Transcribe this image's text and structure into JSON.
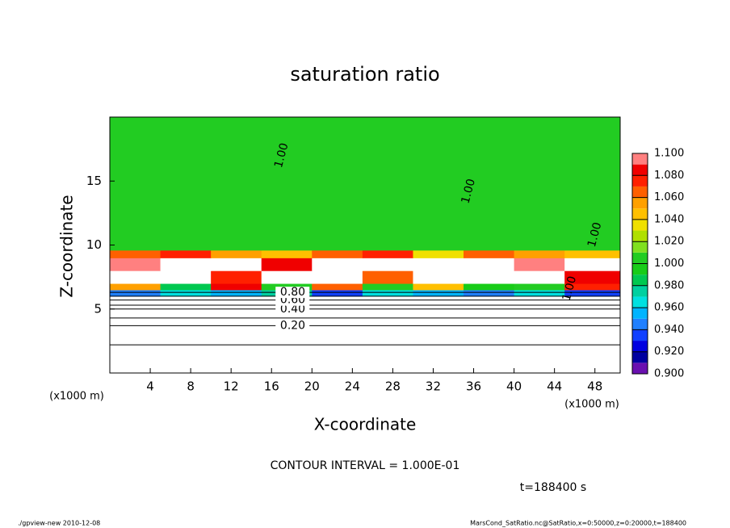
{
  "chart_data": {
    "type": "contour",
    "title": "saturation ratio",
    "x_label": "X-coordinate",
    "y_label": "Z-coordinate",
    "x_unit": "(x1000 m)",
    "y_unit": "(x1000 m)",
    "xlim": [
      0,
      50.5
    ],
    "ylim": [
      0,
      20
    ],
    "xticks": [
      4,
      8,
      12,
      16,
      20,
      24,
      28,
      32,
      36,
      40,
      44,
      48
    ],
    "yticks": [
      5,
      10,
      15
    ],
    "field": {
      "x_edges": [
        0,
        5,
        10,
        15,
        20,
        25,
        30,
        35,
        40,
        45,
        50.5
      ],
      "z_edges": [
        0,
        6,
        6.5,
        7,
        8,
        9,
        9.6,
        20
      ],
      "values": [
        [
          0.5,
          0.5,
          0.5,
          0.5,
          0.5,
          0.5,
          0.5,
          0.5,
          0.5,
          0.5
        ],
        [
          0.94,
          0.96,
          0.95,
          0.97,
          0.93,
          0.96,
          0.95,
          0.94,
          0.96,
          0.93
        ],
        [
          1.05,
          0.98,
          1.08,
          1.0,
          1.06,
          1.0,
          1.04,
          0.99,
          1.0,
          1.07
        ],
        [
          1.12,
          1.15,
          1.07,
          1.2,
          1.13,
          1.06,
          1.11,
          1.2,
          1.15,
          1.08
        ],
        [
          1.09,
          1.14,
          1.12,
          1.08,
          1.17,
          1.1,
          1.13,
          1.16,
          1.09,
          1.12
        ],
        [
          1.06,
          1.07,
          1.05,
          1.04,
          1.06,
          1.07,
          1.03,
          1.06,
          1.05,
          1.04
        ],
        [
          1.0,
          1.0,
          1.0,
          1.0,
          1.0,
          1.0,
          1.0,
          1.0,
          1.0,
          1.0
        ]
      ]
    },
    "colorbar": {
      "levels": [
        0.9,
        0.91,
        0.92,
        0.93,
        0.94,
        0.95,
        0.96,
        0.97,
        0.98,
        0.99,
        1.0,
        1.01,
        1.02,
        1.03,
        1.04,
        1.05,
        1.06,
        1.07,
        1.08,
        1.09,
        1.1
      ],
      "colors": [
        "#6a10b0",
        "#0000a0",
        "#0000e0",
        "#1040ff",
        "#2080ff",
        "#00b4ff",
        "#00e0e0",
        "#00d0a0",
        "#00c850",
        "#18cc18",
        "#22cc22",
        "#80e020",
        "#b0e000",
        "#f0e000",
        "#ffc000",
        "#ffa000",
        "#ff6000",
        "#ff2000",
        "#f00000",
        "#ff8080"
      ],
      "ticks": [
        {
          "value": 0.9,
          "label": "0.900"
        },
        {
          "value": 0.92,
          "label": "0.920"
        },
        {
          "value": 0.94,
          "label": "0.940"
        },
        {
          "value": 0.96,
          "label": "0.960"
        },
        {
          "value": 0.98,
          "label": "0.980"
        },
        {
          "value": 1.0,
          "label": "1.000"
        },
        {
          "value": 1.02,
          "label": "1.020"
        },
        {
          "value": 1.04,
          "label": "1.040"
        },
        {
          "value": 1.06,
          "label": "1.060"
        },
        {
          "value": 1.08,
          "label": "1.080"
        },
        {
          "value": 1.1,
          "label": "1.100"
        }
      ]
    },
    "contours": {
      "levels": [
        0.1,
        0.2,
        0.3,
        0.4,
        0.5,
        0.6,
        0.7,
        0.8
      ],
      "z": [
        2.2,
        3.7,
        4.3,
        5.0,
        5.3,
        5.7,
        6.0,
        6.3
      ],
      "labels": [
        null,
        "0.20",
        null,
        "0.40",
        null,
        "0.60",
        null,
        "0.80"
      ]
    },
    "level_labels": [
      {
        "label": "1.00",
        "x": 17,
        "z": 17
      },
      {
        "label": "1.00",
        "x": 35.5,
        "z": 14.2
      },
      {
        "label": "1.00",
        "x": 48,
        "z": 10.8
      },
      {
        "label": "1.00",
        "x": 45.5,
        "z": 6.6
      }
    ],
    "contour_interval": "CONTOUR INTERVAL = 1.000E-01",
    "time_label": "t=188400 s",
    "footer_left": "./gpview-new  2010-12-08",
    "footer_right": "MarsCond_SatRatio.nc@SatRatio,x=0:50000,z=0:20000,t=188400"
  }
}
